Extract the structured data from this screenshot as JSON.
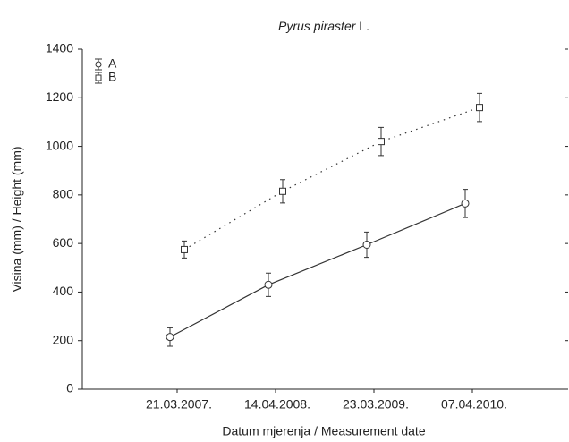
{
  "chart_data": {
    "type": "line",
    "title": [
      "Pyrus piraster",
      "L."
    ],
    "xlabel": "Datum mjerenja / Measurement date",
    "ylabel": "Visina (mm) / Height (mm)",
    "categories": [
      "21.03.2007.",
      "14.04.2008.",
      "23.03.2009.",
      "07.04.2010."
    ],
    "series": [
      {
        "name": "A",
        "color": "#333333",
        "line_style": "solid",
        "marker": "circle",
        "values": [
          215,
          430,
          595,
          765
        ],
        "errors": [
          38,
          48,
          52,
          58
        ]
      },
      {
        "name": "B",
        "color": "#333333",
        "line_style": "dotted",
        "marker": "square",
        "values": [
          575,
          815,
          1020,
          1160
        ],
        "errors": [
          35,
          48,
          58,
          58
        ]
      }
    ],
    "ylim": [
      0,
      1400
    ],
    "yticks": [
      0,
      200,
      400,
      600,
      800,
      1000,
      1200,
      1400
    ],
    "legend": "upper left"
  }
}
